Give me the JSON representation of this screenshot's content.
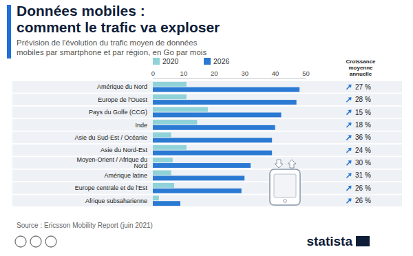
{
  "chart_data": {
    "type": "bar",
    "orientation": "horizontal",
    "title": "Données mobiles :\ncomment le trafic va exploser",
    "subtitle": "Prévision de l'évolution du trafic moyen de données\nmobiles par smartphone et par région, en Go par mois",
    "categories": [
      "Amérique du Nord",
      "Europe de l'Ouest",
      "Pays du Golfe (CCG)",
      "Inde",
      "Asie du Sud-Est / Océanie",
      "Asie du Nord-Est",
      "Moyen-Orient / Afrique du Nord",
      "Amérique latine",
      "Europe centrale et de l'Est",
      "Afrique subsaharienne"
    ],
    "series": [
      {
        "name": "2020",
        "color": "#8fd3d9",
        "values": [
          11,
          11,
          18,
          14.5,
          6,
          11,
          6.5,
          6,
          7,
          2
        ]
      },
      {
        "name": "2026",
        "color": "#2a79d3",
        "values": [
          48,
          47,
          42,
          40,
          39,
          39,
          32,
          30,
          29,
          9
        ]
      }
    ],
    "xlim": [
      0,
      50
    ],
    "xticks": [
      0,
      10,
      20,
      30,
      40,
      50
    ],
    "grid": false,
    "legend": "top-left",
    "data_labels": false,
    "growth": {
      "title": "Croissance moyenne annuelle",
      "values": [
        27,
        28,
        15,
        18,
        36,
        24,
        30,
        31,
        26,
        26
      ],
      "value_labels": [
        "27 %",
        "28 %",
        "15 %",
        "18 %",
        "36 %",
        "24 %",
        "30 %",
        "31 %",
        "26 %",
        "26 %"
      ]
    },
    "source": "Source : Ericsson Mobility Report (juin 2021)",
    "brand": "statista"
  }
}
